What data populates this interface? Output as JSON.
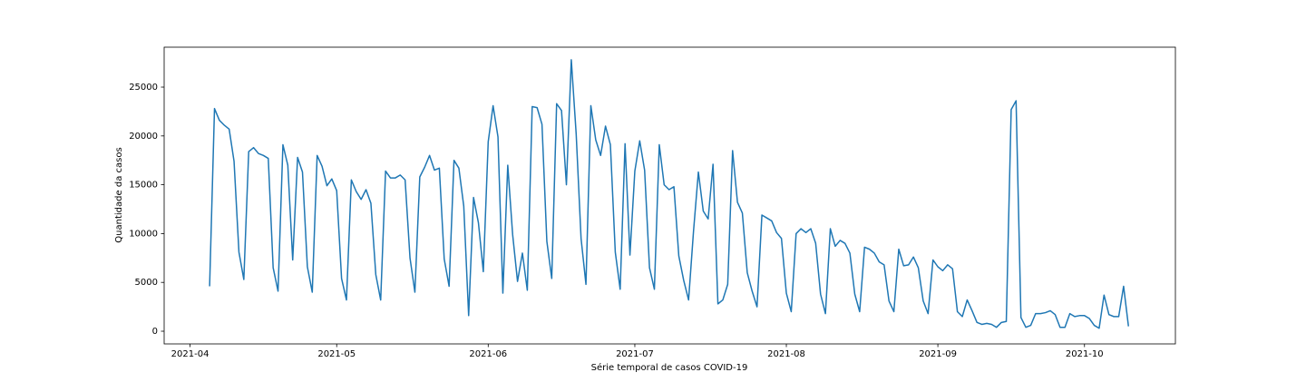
{
  "chart_data": {
    "type": "line",
    "xlabel": "Série temporal de casos COVID-19",
    "ylabel": "Quantidade da casos",
    "series": [
      {
        "color": "#1f77b4",
        "values": [
          4600,
          22800,
          21600,
          21100,
          20700,
          17400,
          8100,
          5300,
          18400,
          18800,
          18200,
          18000,
          17700,
          6500,
          4100,
          19100,
          17000,
          7300,
          17800,
          16300,
          6600,
          4000,
          18000,
          16900,
          14900,
          15600,
          14400,
          5400,
          3200,
          15500,
          14300,
          13500,
          14500,
          13100,
          5800,
          3200,
          16400,
          15700,
          15700,
          16000,
          15500,
          7500,
          4000,
          15800,
          16800,
          18000,
          16500,
          16700,
          7400,
          4600,
          17500,
          16700,
          12800,
          1600,
          13700,
          11100,
          6100,
          19400,
          23100,
          19900,
          3900,
          17000,
          9900,
          5100,
          8000,
          4200,
          23000,
          22900,
          21200,
          9200,
          5400,
          23300,
          22600,
          15000,
          27800,
          20200,
          9500,
          4800,
          23100,
          19600,
          18000,
          21000,
          19100,
          8100,
          4300,
          19200,
          7800,
          16400,
          19500,
          16500,
          6500,
          4300,
          19100,
          15000,
          14500,
          14800,
          7700,
          5200,
          3200,
          10200,
          16300,
          12300,
          11500,
          17100,
          2800,
          3200,
          4800,
          18500,
          13200,
          12100,
          6000,
          4100,
          2500,
          11900,
          11600,
          11300,
          10100,
          9500,
          3900,
          2000,
          10000,
          10500,
          10100,
          10500,
          9000,
          3800,
          1800,
          10500,
          8700,
          9300,
          9000,
          8000,
          3800,
          2000,
          8600,
          8400,
          8000,
          7100,
          6800,
          3100,
          2000,
          8400,
          6700,
          6800,
          7600,
          6500,
          3100,
          1800,
          7300,
          6600,
          6200,
          6800,
          6400,
          2000,
          1500,
          3200,
          2100,
          900,
          700,
          800,
          700,
          400,
          900,
          1000,
          22700,
          23600,
          1400,
          400,
          600,
          1800,
          1800,
          1900,
          2100,
          1700,
          400,
          400,
          1800,
          1500,
          1600,
          1600,
          1300,
          600,
          300,
          3700,
          1700,
          1500,
          1500,
          4600,
          500
        ]
      }
    ],
    "xlim": [
      -9.3,
      197.6
    ],
    "xticks": [
      {
        "value": -4,
        "label": "2021-04"
      },
      {
        "value": 26,
        "label": "2021-05"
      },
      {
        "value": 57,
        "label": "2021-06"
      },
      {
        "value": 87,
        "label": "2021-07"
      },
      {
        "value": 118,
        "label": "2021-08"
      },
      {
        "value": 149,
        "label": "2021-09"
      },
      {
        "value": 179,
        "label": "2021-10"
      }
    ],
    "ylim": [
      -1300,
      29090
    ],
    "yticks": [
      0,
      5000,
      10000,
      15000,
      20000,
      25000
    ]
  }
}
